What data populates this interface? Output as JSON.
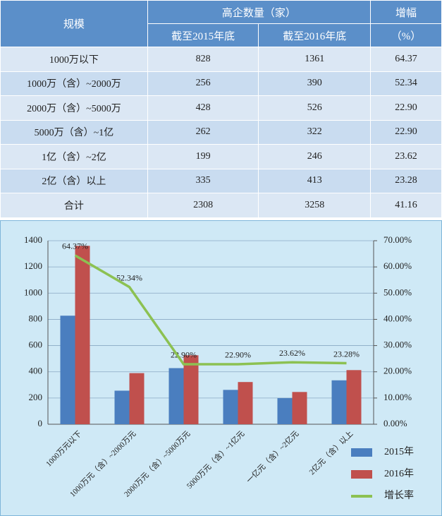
{
  "table": {
    "header": {
      "scale": "规模",
      "count": "高企数量（家）",
      "y2015": "截至2015年底",
      "y2016": "截至2016年底",
      "growth": "增幅",
      "growth_unit": "（%）"
    },
    "rows": [
      [
        "1000万以下",
        "828",
        "1361",
        "64.37"
      ],
      [
        "1000万（含）~2000万",
        "256",
        "390",
        "52.34"
      ],
      [
        "2000万（含）~5000万",
        "428",
        "526",
        "22.90"
      ],
      [
        "5000万（含）~1亿",
        "262",
        "322",
        "22.90"
      ],
      [
        "1亿（含）~2亿",
        "199",
        "246",
        "23.62"
      ],
      [
        "2亿（含）以上",
        "335",
        "413",
        "23.28"
      ],
      [
        "合计",
        "2308",
        "3258",
        "41.16"
      ]
    ]
  },
  "chart_data": {
    "type": "bar",
    "categories": [
      "1000万元以下",
      "1000万元（含）~2000万元",
      "2000万元（含）~5000万元",
      "5000万元（含）~1亿元",
      "一亿元（含）~2亿元",
      "2亿元（含）以上"
    ],
    "series": [
      {
        "name": "2015年",
        "color": "#4a7ebf",
        "values": [
          828,
          256,
          428,
          262,
          199,
          335
        ]
      },
      {
        "name": "2016年",
        "color": "#c0504d",
        "values": [
          1361,
          390,
          526,
          322,
          246,
          413
        ]
      },
      {
        "name": "增长率",
        "color": "#8cc152",
        "axis": "y2",
        "type": "line",
        "values": [
          64.37,
          52.34,
          22.9,
          22.9,
          23.62,
          23.28
        ],
        "value_labels": [
          "64.37%",
          "52.34%",
          "22.90%",
          "22.90%",
          "23.62%",
          "23.28%"
        ]
      }
    ],
    "ylim": [
      0,
      1400
    ],
    "yticks": [
      0,
      200,
      400,
      600,
      800,
      1000,
      1200,
      1400
    ],
    "y2lim": [
      0,
      70
    ],
    "y2ticks": [
      {
        "value": 0,
        "label": "0.00%"
      },
      {
        "value": 10,
        "label": "10.00%"
      },
      {
        "value": 20,
        "label": "20.00%"
      },
      {
        "value": 30,
        "label": "30.00%"
      },
      {
        "value": 40,
        "label": "40.00%"
      },
      {
        "value": 50,
        "label": "50.00%"
      },
      {
        "value": 60,
        "label": "60.00%"
      },
      {
        "value": 70,
        "label": "70.00%"
      }
    ],
    "grid": true
  }
}
